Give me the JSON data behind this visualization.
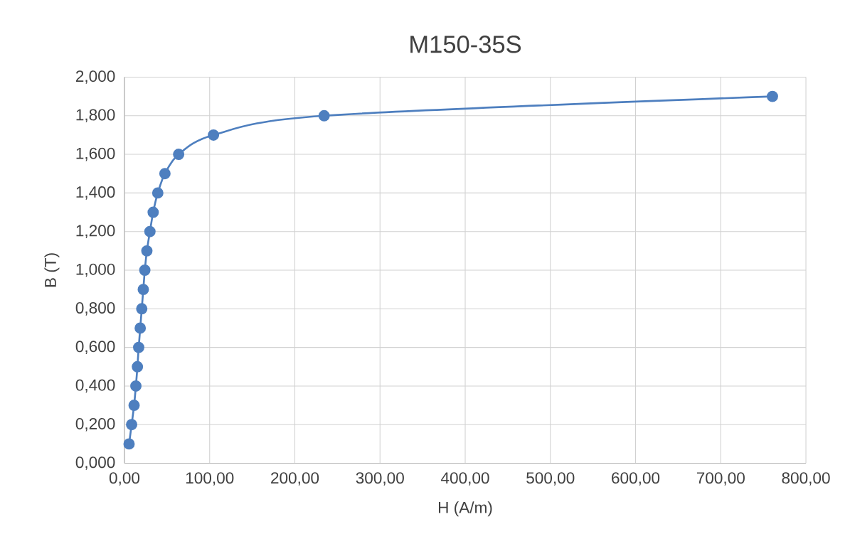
{
  "chart_data": {
    "type": "line",
    "title": "M150-35S",
    "xlabel": "H (A/m)",
    "ylabel": "B (T)",
    "x": [
      5.4,
      8.4,
      11.3,
      13.4,
      15.2,
      16.7,
      18.5,
      20.3,
      22.1,
      23.9,
      26.3,
      29.9,
      33.7,
      39.1,
      47.5,
      63.6,
      104.5,
      234.4,
      760.7
    ],
    "series": [
      {
        "color": "#4e7fbf",
        "values": [
          0.1,
          0.2,
          0.3,
          0.4,
          0.5,
          0.6,
          0.7,
          0.8,
          0.9,
          1.0,
          1.1,
          1.2,
          1.3,
          1.4,
          1.5,
          1.6,
          1.7,
          1.8,
          1.9
        ]
      }
    ],
    "xlim": [
      0,
      800
    ],
    "ylim": [
      0,
      2
    ],
    "xticks": [
      {
        "value": 0,
        "label": "0,00"
      },
      {
        "value": 100,
        "label": "100,00"
      },
      {
        "value": 200,
        "label": "200,00"
      },
      {
        "value": 300,
        "label": "300,00"
      },
      {
        "value": 400,
        "label": "400,00"
      },
      {
        "value": 500,
        "label": "500,00"
      },
      {
        "value": 600,
        "label": "600,00"
      },
      {
        "value": 700,
        "label": "700,00"
      },
      {
        "value": 800,
        "label": "800,00"
      }
    ],
    "yticks": [
      {
        "value": 0,
        "label": "0,000"
      },
      {
        "value": 0.2,
        "label": "0,200"
      },
      {
        "value": 0.4,
        "label": "0,400"
      },
      {
        "value": 0.6,
        "label": "0,600"
      },
      {
        "value": 0.8,
        "label": "0,800"
      },
      {
        "value": 1.0,
        "label": "1,000"
      },
      {
        "value": 1.2,
        "label": "1,200"
      },
      {
        "value": 1.4,
        "label": "1,400"
      },
      {
        "value": 1.6,
        "label": "1,600"
      },
      {
        "value": 1.8,
        "label": "1,800"
      },
      {
        "value": 2.0,
        "label": "2,000"
      }
    ],
    "grid": true,
    "marker": "circle",
    "line_style": "solid"
  }
}
